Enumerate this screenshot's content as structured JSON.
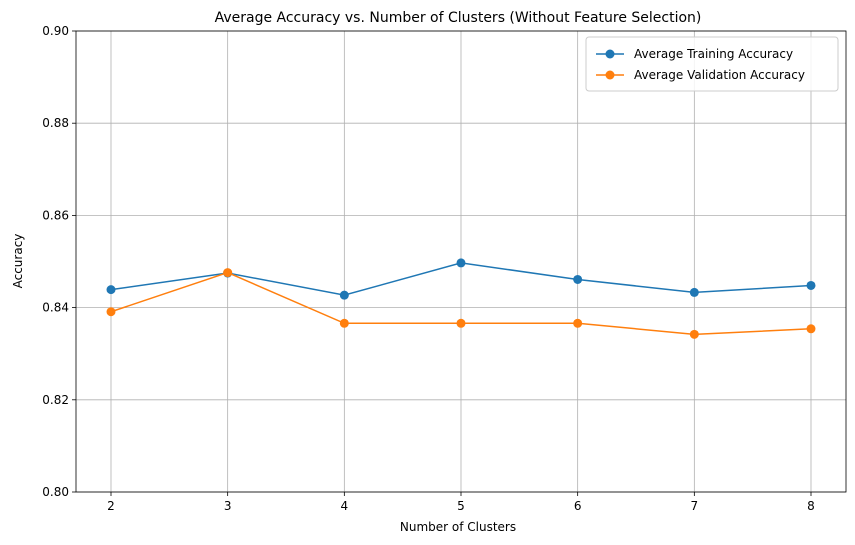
{
  "chart_data": {
    "type": "line",
    "title": "Average Accuracy vs. Number of Clusters (Without Feature Selection)",
    "xlabel": "Number of Clusters",
    "ylabel": "Accuracy",
    "x": [
      2,
      3,
      4,
      5,
      6,
      7,
      8
    ],
    "xlim": [
      1.7,
      8.3
    ],
    "ylim": [
      0.8,
      0.9
    ],
    "xticks": [
      "2",
      "3",
      "4",
      "5",
      "6",
      "7",
      "8"
    ],
    "yticks": [
      "0.80",
      "0.82",
      "0.84",
      "0.86",
      "0.88",
      "0.90"
    ],
    "grid": true,
    "legend_position": "top-right",
    "series": [
      {
        "name": "Average Training Accuracy",
        "color": "#1f77b4",
        "marker": "circle",
        "values": [
          0.8439,
          0.8475,
          0.8427,
          0.8497,
          0.8461,
          0.8433,
          0.8448
        ]
      },
      {
        "name": "Average Validation Accuracy",
        "color": "#ff7f0e",
        "marker": "circle",
        "values": [
          0.8391,
          0.8476,
          0.8366,
          0.8366,
          0.8366,
          0.8342,
          0.8354
        ]
      }
    ]
  }
}
